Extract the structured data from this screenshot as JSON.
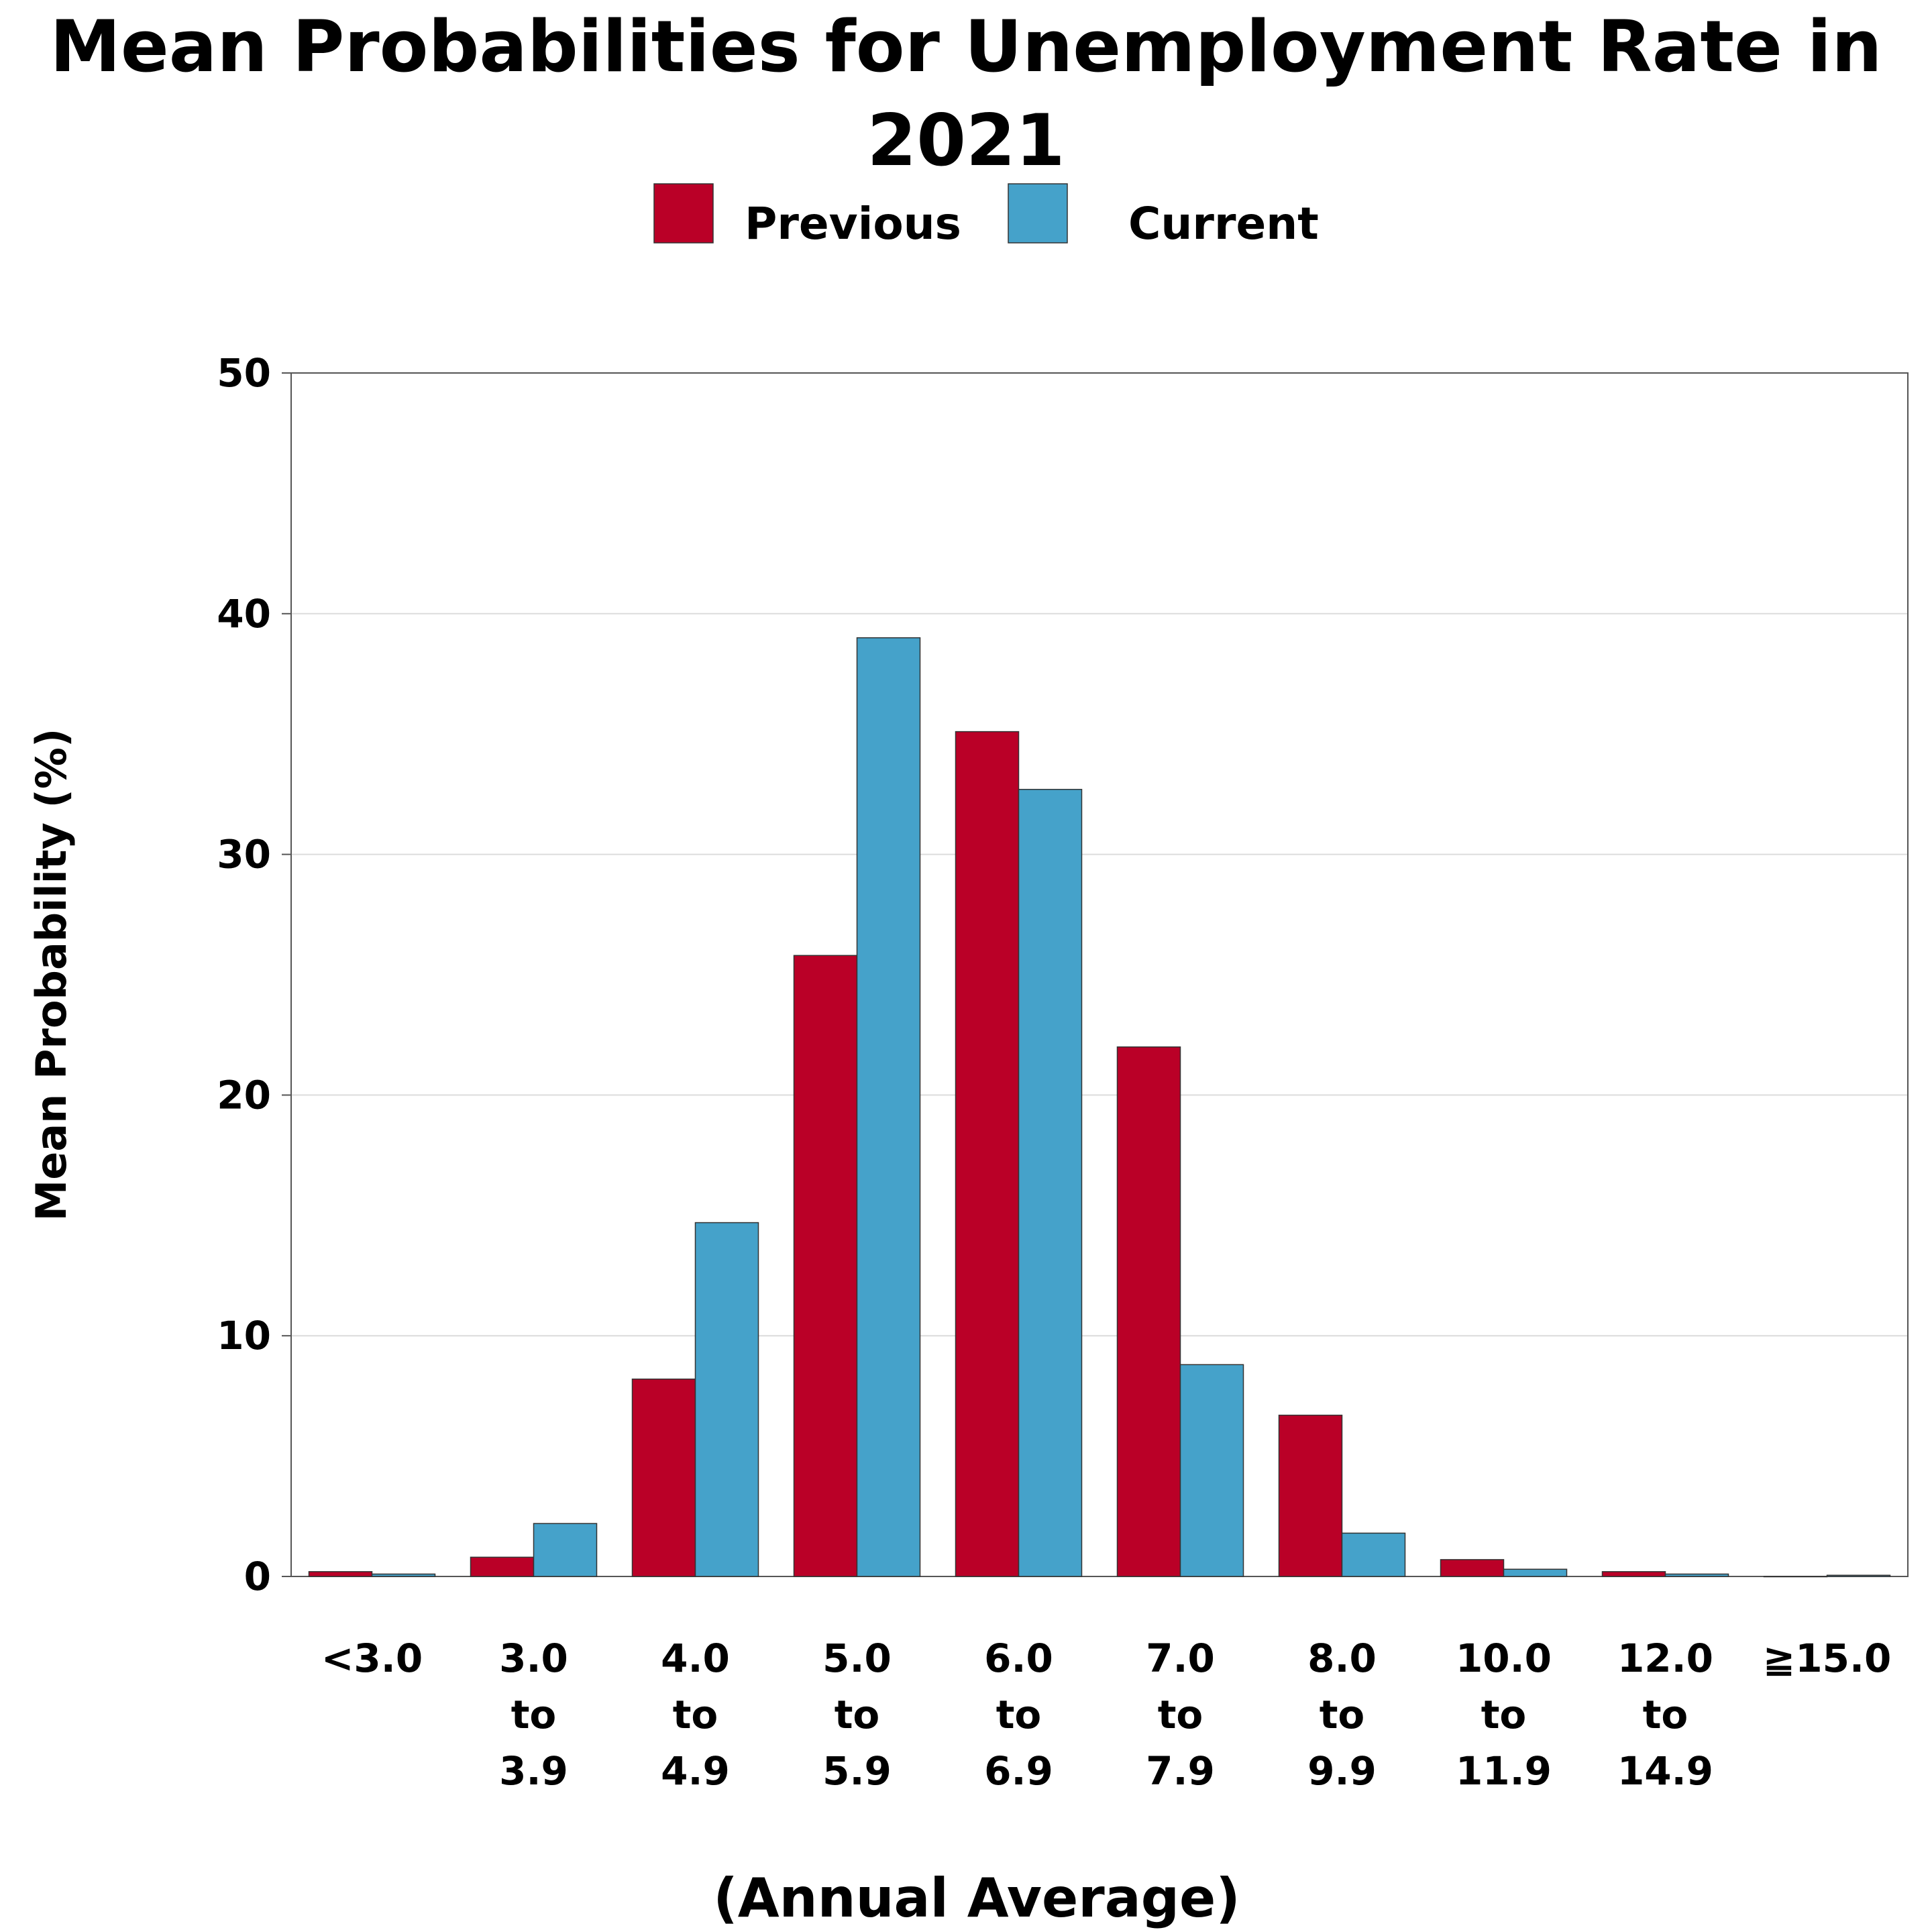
{
  "chart_data": {
    "type": "bar",
    "title": "Mean Probabilities for Unemployment Rate in 2021",
    "xlabel": "(Annual Average)",
    "ylabel": "Mean Probability (%)",
    "ylim": [
      0,
      50
    ],
    "yticks": [
      0,
      10,
      20,
      30,
      40,
      50
    ],
    "grid": true,
    "legend_position": "top-center",
    "categories": [
      [
        "<3.0"
      ],
      [
        "3.0",
        "to",
        "3.9"
      ],
      [
        "4.0",
        "to",
        "4.9"
      ],
      [
        "5.0",
        "to",
        "5.9"
      ],
      [
        "6.0",
        "to",
        "6.9"
      ],
      [
        "7.0",
        "to",
        "7.9"
      ],
      [
        "8.0",
        "to",
        "9.9"
      ],
      [
        "10.0",
        "to",
        "11.9"
      ],
      [
        "12.0",
        "to",
        "14.9"
      ],
      [
        "≧15.0"
      ]
    ],
    "series": [
      {
        "name": "Previous",
        "color": "#BA0027",
        "values": [
          0.2,
          0.8,
          8.2,
          25.8,
          35.1,
          22.0,
          6.7,
          0.7,
          0.2,
          0.0
        ]
      },
      {
        "name": "Current",
        "color": "#45A2CA",
        "values": [
          0.1,
          2.2,
          14.7,
          39.0,
          32.7,
          8.8,
          1.8,
          0.3,
          0.1,
          0.05
        ]
      }
    ]
  }
}
